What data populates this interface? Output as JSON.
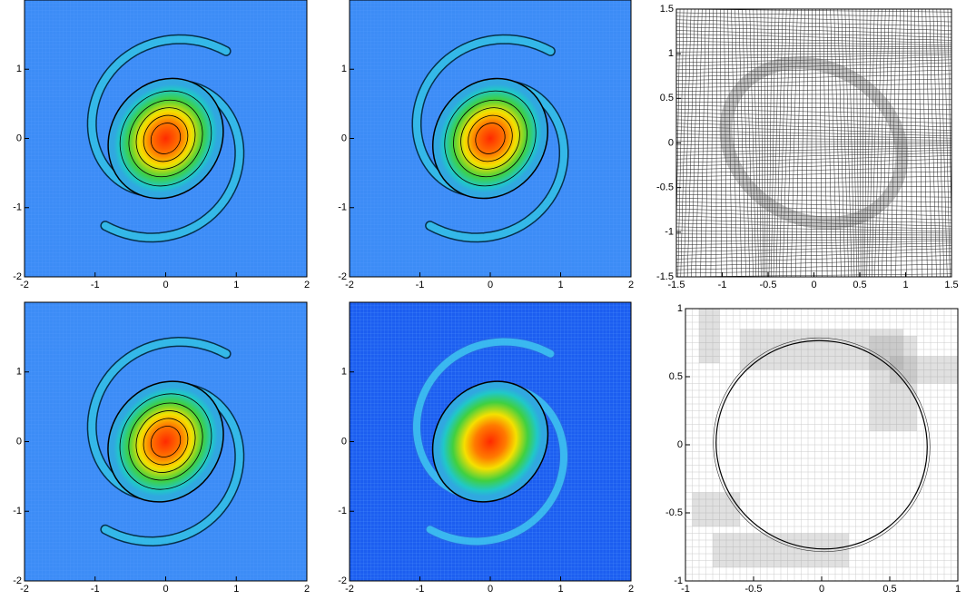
{
  "chart_data": [
    {
      "type": "contour",
      "xlim": [
        -2,
        2
      ],
      "ylim": [
        -2,
        2
      ],
      "xticks": [
        -2,
        -1,
        0,
        1,
        2
      ],
      "yticks": [
        -2,
        -1,
        0,
        1
      ]
    },
    {
      "type": "contour",
      "xlim": [
        -2,
        2
      ],
      "ylim": [
        -2,
        2
      ],
      "xticks": [
        -2,
        -1,
        0,
        1,
        2
      ],
      "yticks": [
        -2,
        -1,
        0,
        1
      ]
    },
    {
      "type": "mesh",
      "xlim": [
        -1.5,
        1.5
      ],
      "ylim": [
        -1.5,
        1.5
      ],
      "xticks": [
        -1.5,
        -1,
        -0.5,
        0,
        0.5,
        1,
        1.5
      ],
      "yticks": [
        -1.5,
        -1,
        -0.5,
        0,
        0.5,
        1,
        1.5
      ]
    },
    {
      "type": "contour",
      "xlim": [
        -2,
        2
      ],
      "ylim": [
        -2,
        2
      ],
      "xticks": [
        -2,
        -1,
        0,
        1,
        2
      ],
      "yticks": [
        -2,
        -1,
        0,
        1
      ]
    },
    {
      "type": "contour",
      "xlim": [
        -2,
        2
      ],
      "ylim": [
        -2,
        2
      ],
      "xticks": [
        -2,
        -1,
        0,
        1,
        2
      ],
      "yticks": [
        -2,
        -1,
        0,
        1
      ]
    },
    {
      "type": "amr",
      "xlim": [
        -1,
        1
      ],
      "ylim": [
        -1,
        1
      ],
      "xticks": [
        -1,
        -0.5,
        0,
        0.5,
        1
      ],
      "yticks": [
        -1,
        -0.5,
        0,
        0.5,
        1
      ]
    }
  ]
}
